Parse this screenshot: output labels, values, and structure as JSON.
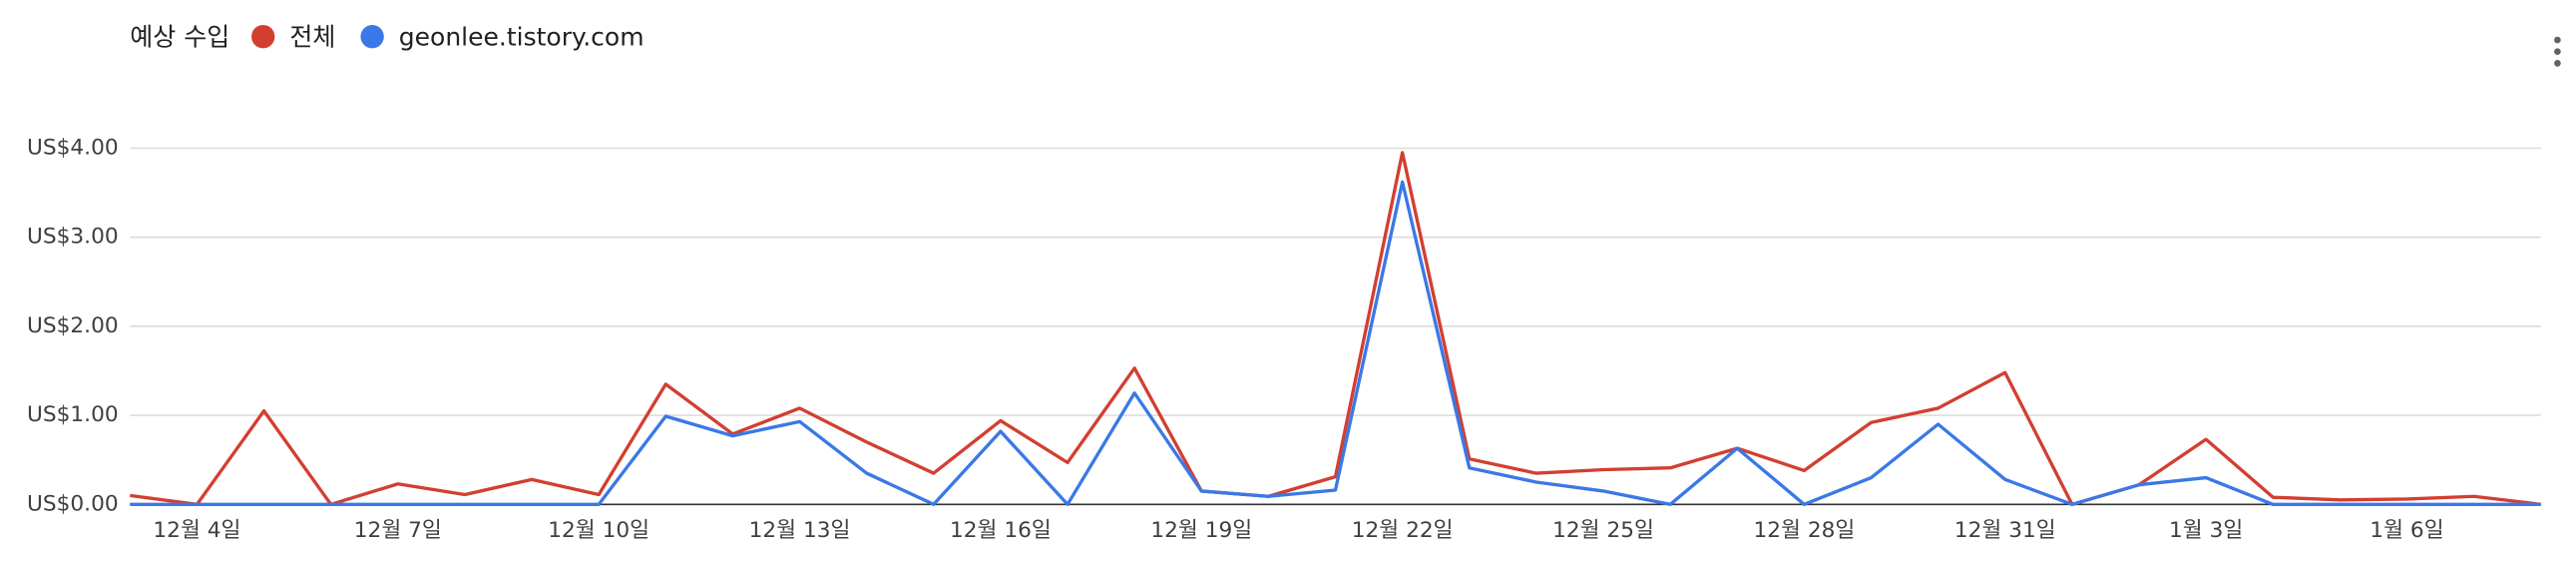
{
  "chart_data": {
    "type": "line",
    "legend_title": "예상 수입",
    "categories": [
      null,
      "12월 4일",
      null,
      null,
      "12월 7일",
      null,
      null,
      "12월 10일",
      null,
      null,
      "12월 13일",
      null,
      null,
      "12월 16일",
      null,
      null,
      "12월 19일",
      null,
      null,
      "12월 22일",
      null,
      null,
      "12월 25일",
      null,
      null,
      "12월 28일",
      null,
      null,
      "12월 31일",
      null,
      null,
      "1월 3일",
      null,
      null,
      "1월 6일",
      null,
      null
    ],
    "series": [
      {
        "name": "전체",
        "color": "#d23f31",
        "values": [
          0.1,
          0,
          1.05,
          0,
          0.23,
          0.11,
          0.28,
          0.11,
          1.35,
          0.79,
          1.08,
          0.7,
          0.35,
          0.94,
          0.47,
          1.53,
          0.15,
          0.09,
          0.31,
          3.95,
          0.51,
          0.35,
          0.39,
          0.41,
          0.63,
          0.38,
          0.92,
          1.08,
          1.48,
          0,
          0.22,
          0.73,
          0.08,
          0.05,
          0.06,
          0.09,
          0
        ]
      },
      {
        "name": "geonlee.tistory.com",
        "color": "#3b78e7",
        "values": [
          0,
          0,
          0,
          0,
          0,
          0,
          0,
          0,
          0.99,
          0.77,
          0.93,
          0.35,
          0,
          0.82,
          0,
          1.25,
          0.15,
          0.09,
          0.16,
          3.62,
          0.41,
          0.25,
          0.15,
          0,
          0.63,
          0,
          0.3,
          0.9,
          0.28,
          0,
          0.22,
          0.3,
          0,
          0,
          0,
          0,
          0
        ]
      }
    ],
    "ylim": [
      0,
      4
    ],
    "yticks": [
      {
        "value": 0,
        "label": "US$0.00"
      },
      {
        "value": 1,
        "label": "US$1.00"
      },
      {
        "value": 2,
        "label": "US$2.00"
      },
      {
        "value": 3,
        "label": "US$3.00"
      },
      {
        "value": 4,
        "label": "US$4.00"
      }
    ],
    "grid": true
  }
}
